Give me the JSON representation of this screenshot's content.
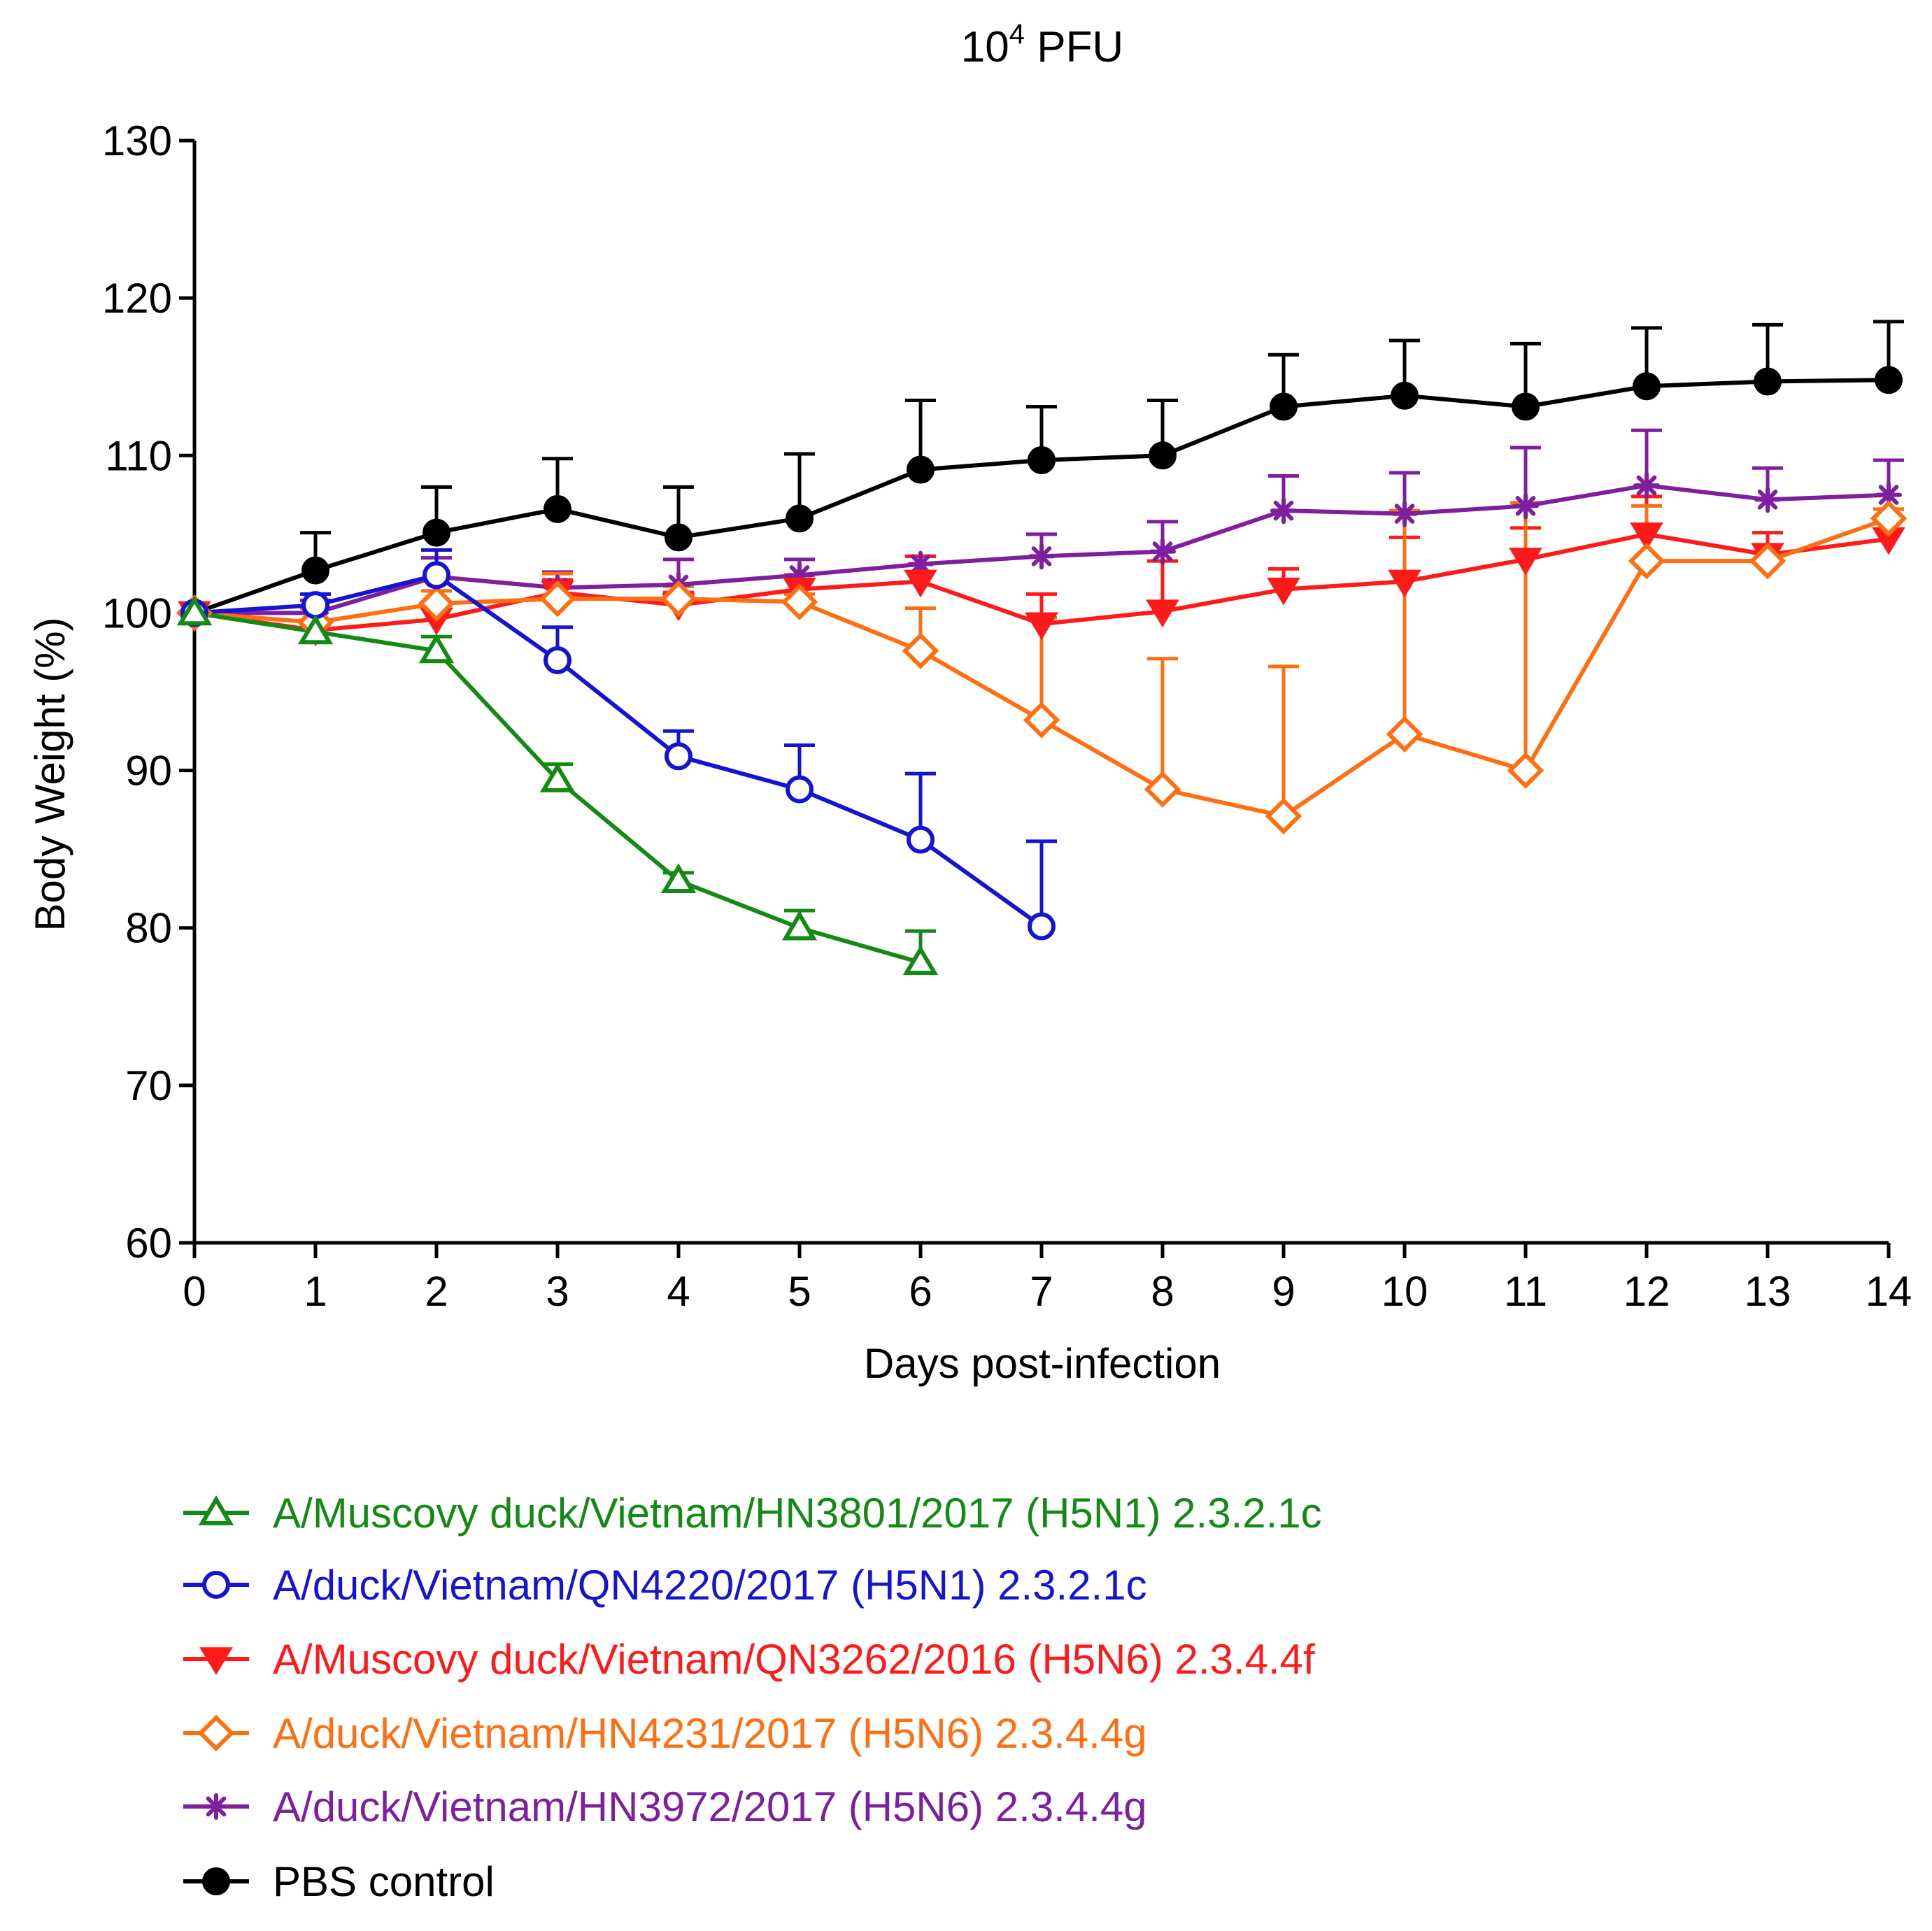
{
  "chart_data": {
    "type": "line",
    "title_base": "10",
    "title_sup": "4",
    "title_rest": " PFU",
    "xlabel": "Days post-infection",
    "ylabel": "Body Weight (%)",
    "xlim": [
      0,
      14
    ],
    "ylim": [
      60,
      130
    ],
    "xticks": [
      0,
      1,
      2,
      3,
      4,
      5,
      6,
      7,
      8,
      9,
      10,
      11,
      12,
      13,
      14
    ],
    "yticks": [
      60,
      70,
      80,
      90,
      100,
      110,
      120,
      130
    ],
    "grid": false,
    "legend_position": "bottom",
    "series": [
      {
        "name": "PBS control",
        "color": "#000000",
        "marker": "filled-circle",
        "x": [
          0,
          1,
          2,
          3,
          4,
          5,
          6,
          7,
          8,
          9,
          10,
          11,
          12,
          13,
          14
        ],
        "y": [
          100,
          102.7,
          105.1,
          106.6,
          104.8,
          106.0,
          109.1,
          109.7,
          110.0,
          113.1,
          113.8,
          113.1,
          114.4,
          114.7,
          114.8
        ],
        "err": [
          0,
          2.4,
          2.9,
          3.2,
          3.2,
          4.1,
          4.4,
          3.4,
          3.5,
          3.3,
          3.5,
          4.0,
          3.7,
          3.6,
          3.7
        ]
      },
      {
        "name": "A/duck/Vietnam/HN3972/2017 (H5N6) 2.3.4.4g",
        "color": "#7e1fa0",
        "marker": "asterisk",
        "x": [
          0,
          1,
          2,
          3,
          4,
          5,
          6,
          7,
          8,
          9,
          10,
          11,
          12,
          13,
          14
        ],
        "y": [
          100,
          100.0,
          102.3,
          101.6,
          101.8,
          102.4,
          103.1,
          103.6,
          103.9,
          106.5,
          106.3,
          106.8,
          108.1,
          107.2,
          107.5
        ],
        "err": [
          0,
          0.8,
          1.2,
          1.0,
          1.6,
          1.0,
          0.5,
          1.4,
          1.9,
          2.2,
          2.6,
          3.7,
          3.5,
          2.0,
          2.2
        ]
      },
      {
        "name": "A/Muscovy duck/Vietnam/QN3262/2016 (H5N6) 2.3.4.4f",
        "color": "#ff1a1a",
        "marker": "filled-triangle-down",
        "x": [
          0,
          1,
          2,
          3,
          4,
          5,
          6,
          7,
          8,
          9,
          10,
          11,
          12,
          13,
          14
        ],
        "y": [
          100,
          98.9,
          99.6,
          101.3,
          100.5,
          101.5,
          102.0,
          99.3,
          100.1,
          101.5,
          102.0,
          103.4,
          105.0,
          103.7,
          104.7
        ],
        "err": [
          0,
          0.6,
          0.9,
          0.8,
          0.8,
          0.9,
          1.6,
          1.9,
          3.2,
          1.3,
          2.8,
          2.0,
          2.4,
          1.4,
          1.3
        ]
      },
      {
        "name": "A/duck/Vietnam/HN4231/2017 (H5N6) 2.3.4.4g",
        "color": "#ff6f12",
        "marker": "open-diamond",
        "x": [
          0,
          1,
          2,
          3,
          4,
          5,
          6,
          7,
          8,
          9,
          10,
          11,
          12,
          13,
          14
        ],
        "y": [
          100,
          99.4,
          100.6,
          100.9,
          100.9,
          100.7,
          97.6,
          93.2,
          88.8,
          87.1,
          92.3,
          90.0,
          103.3,
          103.3,
          106.0
        ],
        "err": [
          0,
          0.9,
          0.8,
          1.6,
          0.8,
          0.5,
          2.7,
          6.5,
          8.3,
          9.5,
          14.2,
          17.0,
          3.5,
          0.5,
          0.6
        ]
      },
      {
        "name": "A/duck/Vietnam/QN4220/2017 (H5N1) 2.3.2.1c",
        "color": "#1414d2",
        "marker": "open-circle",
        "x": [
          0,
          1,
          2,
          3,
          4,
          5,
          6,
          7
        ],
        "y": [
          100,
          100.5,
          102.4,
          97.0,
          90.9,
          88.8,
          85.6,
          80.1
        ],
        "err": [
          0,
          0.7,
          1.6,
          2.1,
          1.6,
          2.8,
          4.2,
          5.4
        ]
      },
      {
        "name": "A/Muscovy duck/Vietnam/HN3801/2017 (H5N1) 2.3.2.1c",
        "color": "#138a13",
        "marker": "open-triangle-up",
        "x": [
          0,
          1,
          2,
          3,
          4,
          5,
          6
        ],
        "y": [
          100,
          98.8,
          97.6,
          89.4,
          83.0,
          80.0,
          77.8
        ],
        "err": [
          0,
          0.5,
          0.9,
          1.0,
          0.5,
          1.1,
          2.0
        ]
      }
    ],
    "legend_order": [
      5,
      4,
      2,
      3,
      1,
      0
    ]
  }
}
